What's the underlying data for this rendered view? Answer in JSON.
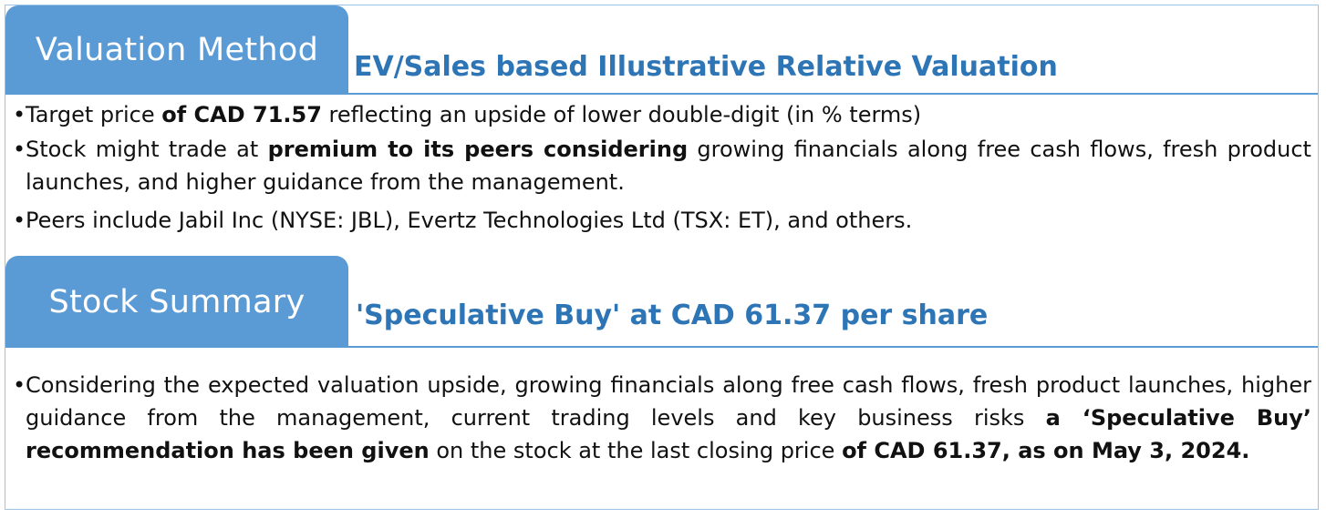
{
  "section1": {
    "tab_label": "Valuation Method",
    "heading": "EV/Sales based Illustrative Relative Valuation",
    "bullets": [
      {
        "pre": "Target price ",
        "bold": "of CAD 71.57",
        "post": " reflecting an upside of lower double-digit (in % terms)"
      },
      {
        "pre": "Stock might trade at ",
        "bold": "premium to its peers considering",
        "post": " growing financials along free cash flows, fresh product launches, and higher guidance from the management."
      },
      {
        "pre": "Peers include Jabil Inc (NYSE: JBL), Evertz Technologies Ltd (TSX: ET), and others.",
        "bold": "",
        "post": ""
      }
    ]
  },
  "section2": {
    "tab_label": "Stock Summary",
    "heading": "'Speculative Buy' at CAD 61.37 per share",
    "bullet": {
      "pre": "Considering the expected valuation upside, growing financials along free cash flows, fresh product launches, higher guidance from the management, current trading levels and key business risks ",
      "bold1": "a ‘Speculative Buy’ recommendation has been given",
      "mid": " on the stock at the last closing price ",
      "bold2": "of CAD 61.37, as on May 3, 2024."
    }
  },
  "bullet_char": "•",
  "colors": {
    "tab_bg": "#5b9bd5",
    "heading": "#2e75b6",
    "border": "#9dc3e6"
  }
}
